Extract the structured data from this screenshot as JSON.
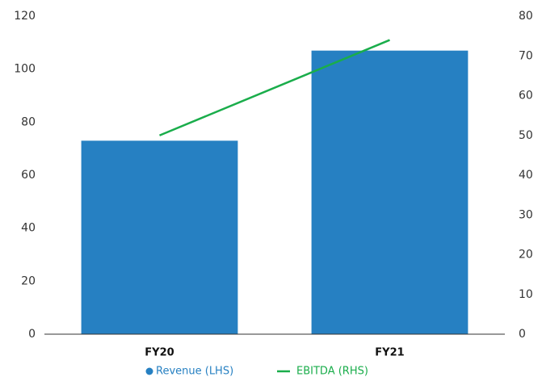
{
  "chart_data": {
    "type": "bar",
    "categories": [
      "FY20",
      "FY21"
    ],
    "series": [
      {
        "name": "Revenue (LHS)",
        "type": "bar",
        "color": "#2680c2",
        "values": [
          73,
          107
        ]
      },
      {
        "name": "EBITDA (RHS)",
        "type": "line",
        "axis": "y2",
        "color": "#1aad4b",
        "values": [
          50,
          74
        ]
      }
    ],
    "ylim": [
      0,
      120
    ],
    "yticks": [
      0,
      20,
      40,
      60,
      80,
      100,
      120
    ],
    "y2lim": [
      0,
      80
    ],
    "y2ticks": [
      0,
      10,
      20,
      30,
      40,
      50,
      60,
      70,
      80
    ],
    "legend": "bottom"
  }
}
